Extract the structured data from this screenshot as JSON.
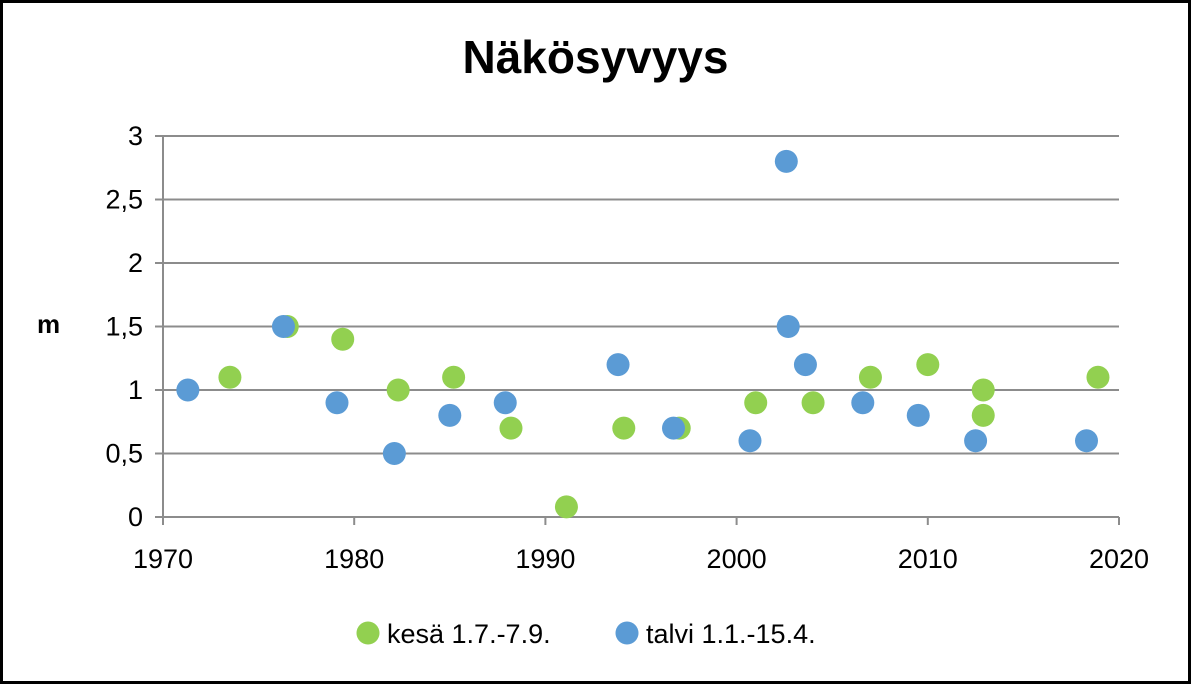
{
  "chart_data": {
    "type": "scatter",
    "title": "Näkösyvyys",
    "xlabel": "",
    "ylabel": "m",
    "xlim": [
      1970,
      2020
    ],
    "ylim": [
      0,
      3
    ],
    "x_ticks": [
      1970,
      1980,
      1990,
      2000,
      2010,
      2020
    ],
    "y_ticks": [
      {
        "value": 0,
        "label": "0"
      },
      {
        "value": 0.5,
        "label": "0,5"
      },
      {
        "value": 1,
        "label": "1"
      },
      {
        "value": 1.5,
        "label": "1,5"
      },
      {
        "value": 2,
        "label": "2"
      },
      {
        "value": 2.5,
        "label": "2,5"
      },
      {
        "value": 3,
        "label": "3"
      }
    ],
    "grid": "horizontal",
    "legend_position": "bottom",
    "series": [
      {
        "name": "kesä 1.7.-7.9.",
        "color": "#92D050",
        "points": [
          {
            "x": 1973.5,
            "y": 1.1
          },
          {
            "x": 1976.5,
            "y": 1.5
          },
          {
            "x": 1979.4,
            "y": 1.4
          },
          {
            "x": 1982.3,
            "y": 1.0
          },
          {
            "x": 1985.2,
            "y": 1.1
          },
          {
            "x": 1988.2,
            "y": 0.7
          },
          {
            "x": 1991.1,
            "y": 0.08
          },
          {
            "x": 1994.1,
            "y": 0.7
          },
          {
            "x": 1997.0,
            "y": 0.7
          },
          {
            "x": 2001.0,
            "y": 0.9
          },
          {
            "x": 2004.0,
            "y": 0.9
          },
          {
            "x": 2007.0,
            "y": 1.1
          },
          {
            "x": 2010.0,
            "y": 1.2
          },
          {
            "x": 2012.9,
            "y": 0.8
          },
          {
            "x": 2012.9,
            "y": 1.0
          },
          {
            "x": 2018.9,
            "y": 1.1
          }
        ]
      },
      {
        "name": "talvi 1.1.-15.4.",
        "color": "#5B9BD5",
        "points": [
          {
            "x": 1971.3,
            "y": 1.0
          },
          {
            "x": 1976.3,
            "y": 1.5
          },
          {
            "x": 1979.1,
            "y": 0.9
          },
          {
            "x": 1982.1,
            "y": 0.5
          },
          {
            "x": 1985.0,
            "y": 0.8
          },
          {
            "x": 1987.9,
            "y": 0.9
          },
          {
            "x": 1993.8,
            "y": 1.2
          },
          {
            "x": 1996.7,
            "y": 0.7
          },
          {
            "x": 2000.7,
            "y": 0.6
          },
          {
            "x": 2002.6,
            "y": 2.8
          },
          {
            "x": 2002.7,
            "y": 1.5
          },
          {
            "x": 2003.6,
            "y": 1.2
          },
          {
            "x": 2006.6,
            "y": 0.9
          },
          {
            "x": 2009.5,
            "y": 0.8
          },
          {
            "x": 2012.5,
            "y": 0.6
          },
          {
            "x": 2018.3,
            "y": 0.6
          }
        ]
      }
    ]
  }
}
